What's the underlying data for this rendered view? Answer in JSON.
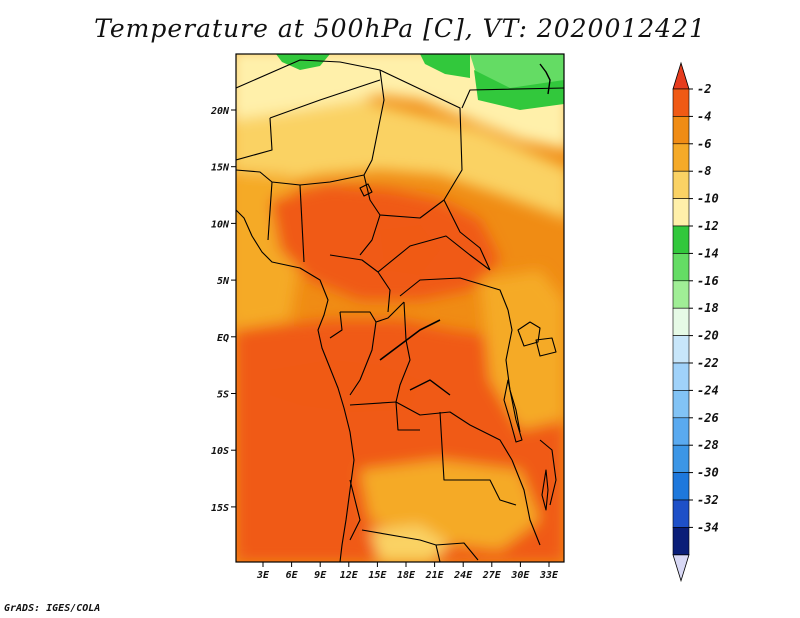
{
  "title": "Temperature at 500hPa [C], VT: 2020012421",
  "footer": "GrADS: IGES/COLA",
  "map": {
    "variable": "Temperature at 500hPa",
    "units": "C",
    "valid_time": "2020012421",
    "lon_ticks": [
      "3E",
      "6E",
      "9E",
      "12E",
      "15E",
      "18E",
      "21E",
      "24E",
      "27E",
      "30E",
      "33E"
    ],
    "lat_ticks": [
      "20N",
      "15N",
      "10N",
      "5N",
      "EQ",
      "5S",
      "10S",
      "15S"
    ]
  },
  "colorbar": {
    "labels": [
      "-2",
      "-4",
      "-6",
      "-8",
      "-10",
      "-12",
      "-14",
      "-16",
      "-18",
      "-20",
      "-22",
      "-24",
      "-26",
      "-28",
      "-30",
      "-32",
      "-34"
    ],
    "colors": [
      "#f05a14",
      "#f08c14",
      "#f5aa28",
      "#fad264",
      "#fff0aa",
      "#32c83c",
      "#64dc64",
      "#a0ee96",
      "#e6fae6",
      "#c8e6fa",
      "#a0d2fa",
      "#82c3f5",
      "#5aaaf0",
      "#3c96e6",
      "#1e78dc",
      "#1e50c8",
      "#0a1e78"
    ],
    "top_arrow_color": "#e63c1e",
    "bottom_arrow_color": "#d8d8f5"
  }
}
